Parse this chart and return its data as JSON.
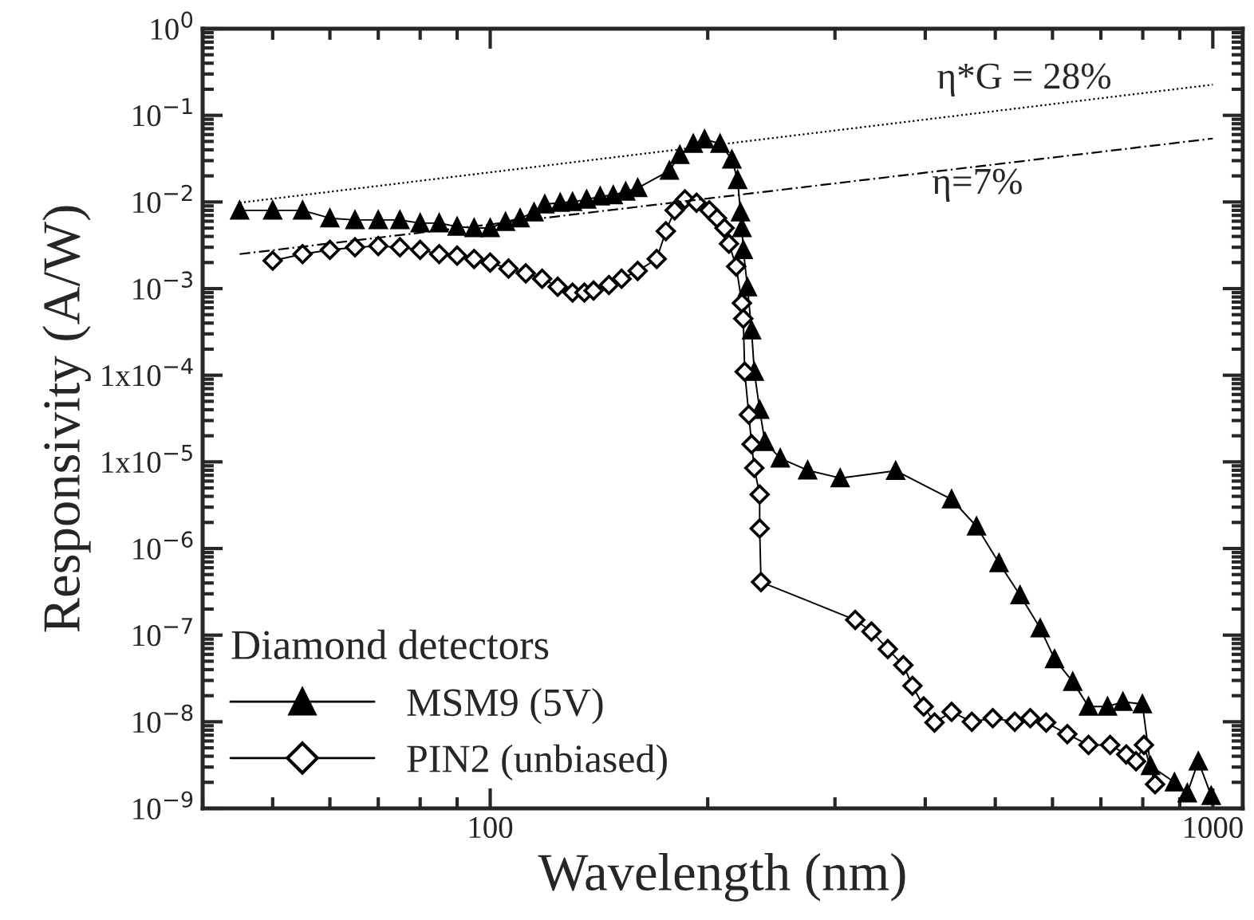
{
  "chart_data": {
    "type": "line",
    "xlabel": "Wavelength (nm)",
    "ylabel": "Responsivity (A/W)",
    "legend_title": "Diamond detectors",
    "log": "xy",
    "xlim": [
      40,
      1100
    ],
    "xticks": [
      100,
      1000
    ],
    "ylim": [
      1e-09,
      1
    ],
    "yticks": [
      {
        "value": 1,
        "label": "10$^{0}$"
      },
      {
        "value": 0.1,
        "label": "10$^{−1}$"
      },
      {
        "value": 0.01,
        "label": "10$^{−2}$"
      },
      {
        "value": 0.001,
        "label": "10$^{−3}$"
      },
      {
        "value": 0.0001,
        "label": "1x10$^{−4}$"
      },
      {
        "value": 1e-05,
        "label": "1x10$^{−5}$"
      },
      {
        "value": 1e-06,
        "label": "10$^{−6}$"
      },
      {
        "value": 1e-07,
        "label": "10$^{−7}$"
      },
      {
        "value": 1e-08,
        "label": "10$^{−8}$"
      },
      {
        "value": 1e-09,
        "label": "10$^{−9}$"
      }
    ],
    "grid": false,
    "legend": "bottom left",
    "series": [
      {
        "name": "MSM9 (5V)",
        "color": "#000000",
        "marker": "triangle",
        "line_style": "solid",
        "x": [
          45,
          50,
          55,
          60,
          65,
          70,
          75,
          80,
          85,
          90,
          95,
          100,
          105,
          110,
          115,
          119,
          125,
          130,
          136,
          142,
          148,
          154,
          160,
          177,
          183,
          191,
          198,
          208,
          216,
          220,
          222,
          223,
          224,
          227,
          230,
          232,
          236,
          240,
          252,
          275,
          305,
          364,
          435,
          471,
          506,
          541,
          577,
          604,
          640,
          673,
          715,
          751,
          799,
          820,
          885,
          922,
          955,
          995
        ],
        "values": [
          0.008,
          0.008,
          0.008,
          0.0065,
          0.0062,
          0.0062,
          0.0062,
          0.0057,
          0.0057,
          0.0052,
          0.005,
          0.005,
          0.0059,
          0.0065,
          0.0076,
          0.0094,
          0.0098,
          0.01,
          0.0107,
          0.0116,
          0.012,
          0.0132,
          0.0145,
          0.023,
          0.035,
          0.047,
          0.053,
          0.047,
          0.031,
          0.018,
          0.0076,
          0.005,
          0.0028,
          0.00104,
          0.00033,
          0.00011,
          4e-05,
          1.7e-05,
          1.1e-05,
          8e-06,
          6.5e-06,
          7.9e-06,
          3.7e-06,
          1.8e-06,
          6.8e-07,
          2.9e-07,
          1.2e-07,
          5.3e-08,
          2.9e-08,
          1.5e-08,
          1.5e-08,
          1.7e-08,
          1.6e-08,
          3.1e-09,
          2e-09,
          1.5e-09,
          3.5e-09,
          1.4e-09
        ]
      },
      {
        "name": "PIN2 (unbiased)",
        "color": "#000000",
        "marker": "diamond",
        "line_style": "solid",
        "x": [
          50,
          55,
          60,
          65,
          70,
          75,
          80,
          85,
          90,
          95,
          100,
          106,
          112,
          118,
          124,
          130,
          135,
          139,
          146,
          152,
          160,
          170,
          175,
          180,
          186,
          193,
          201,
          206,
          211,
          214,
          219,
          223,
          224,
          225,
          228,
          230,
          232,
          236,
          236,
          237,
          320,
          337,
          355,
          373,
          384,
          398,
          412,
          435,
          464,
          496,
          532,
          559,
          588,
          629,
          673,
          721,
          759,
          783,
          803,
          832
        ],
        "values": [
          0.0021,
          0.0025,
          0.0028,
          0.003,
          0.0031,
          0.003,
          0.0028,
          0.0025,
          0.0024,
          0.0022,
          0.002,
          0.0017,
          0.0015,
          0.0013,
          0.00105,
          0.0009,
          0.0009,
          0.00095,
          0.0011,
          0.0013,
          0.0016,
          0.0022,
          0.0046,
          0.008,
          0.0107,
          0.0098,
          0.008,
          0.0065,
          0.005,
          0.0033,
          0.0018,
          0.00068,
          0.00045,
          0.00011,
          3.5e-05,
          1.6e-05,
          8.5e-06,
          4.2e-06,
          1.7e-06,
          4.1e-07,
          1.5e-07,
          1.1e-07,
          6.9e-08,
          4.5e-08,
          2.6e-08,
          1.5e-08,
          9.8e-09,
          1.3e-08,
          1e-08,
          1.1e-08,
          1e-08,
          1.1e-08,
          9.8e-09,
          7.2e-09,
          5.4e-09,
          5.4e-09,
          4.2e-09,
          3.5e-09,
          5.4e-09,
          1.9e-09
        ]
      },
      {
        "color": "#000000",
        "marker": "none",
        "line_style": "dotted",
        "x": [
          45,
          1000
        ],
        "values": [
          0.0098,
          0.226
        ]
      },
      {
        "color": "#000000",
        "marker": "none",
        "line_style": "dashed",
        "x": [
          45,
          1000
        ],
        "values": [
          0.0025,
          0.054
        ]
      }
    ],
    "annotations": [
      "η*G = 28%",
      "η=7%"
    ]
  }
}
